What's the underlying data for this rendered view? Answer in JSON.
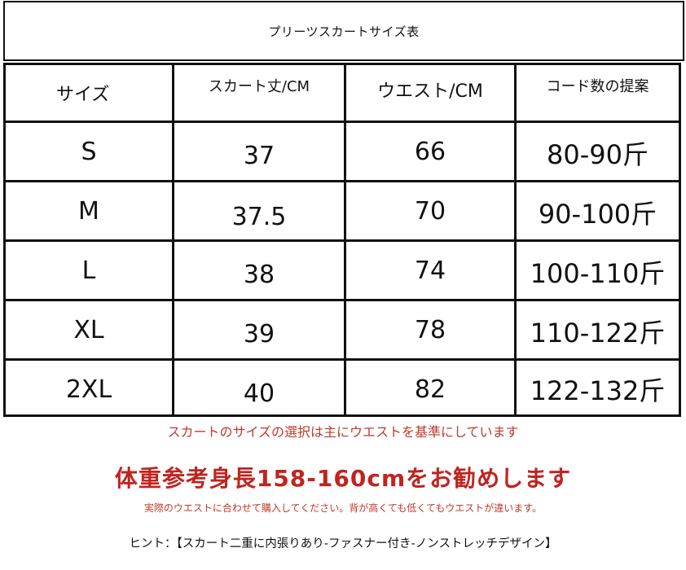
{
  "title": "プリーツスカートサイズ表",
  "table": {
    "headers": [
      "サイズ",
      "スカート丈/CM",
      "ウエスト/CM",
      "コード数の提案"
    ],
    "rows": [
      [
        "S",
        "37",
        "66",
        "80-90斤"
      ],
      [
        "M",
        "37.5",
        "70",
        "90-100斤"
      ],
      [
        "L",
        "38",
        "74",
        "100-110斤"
      ],
      [
        "XL",
        "39",
        "78",
        "110-122斤"
      ],
      [
        "2XL",
        "40",
        "82",
        "122-132斤"
      ]
    ]
  },
  "notes": {
    "selection_note": "スカートのサイズの選択は主にウエストを基準にしています",
    "recommendation": "体重参考身長158-160cmをお勧めします",
    "fit_note": "実際のウエストに合わせて購入してください。背が高くても低くてもウエストが違います。",
    "hint": "ヒント：【スカート二重に内張りあり-ファスナー付き-ノンストレッチデザイン】"
  },
  "colors": {
    "accent_red": "#c0241f",
    "border": "#111111"
  }
}
